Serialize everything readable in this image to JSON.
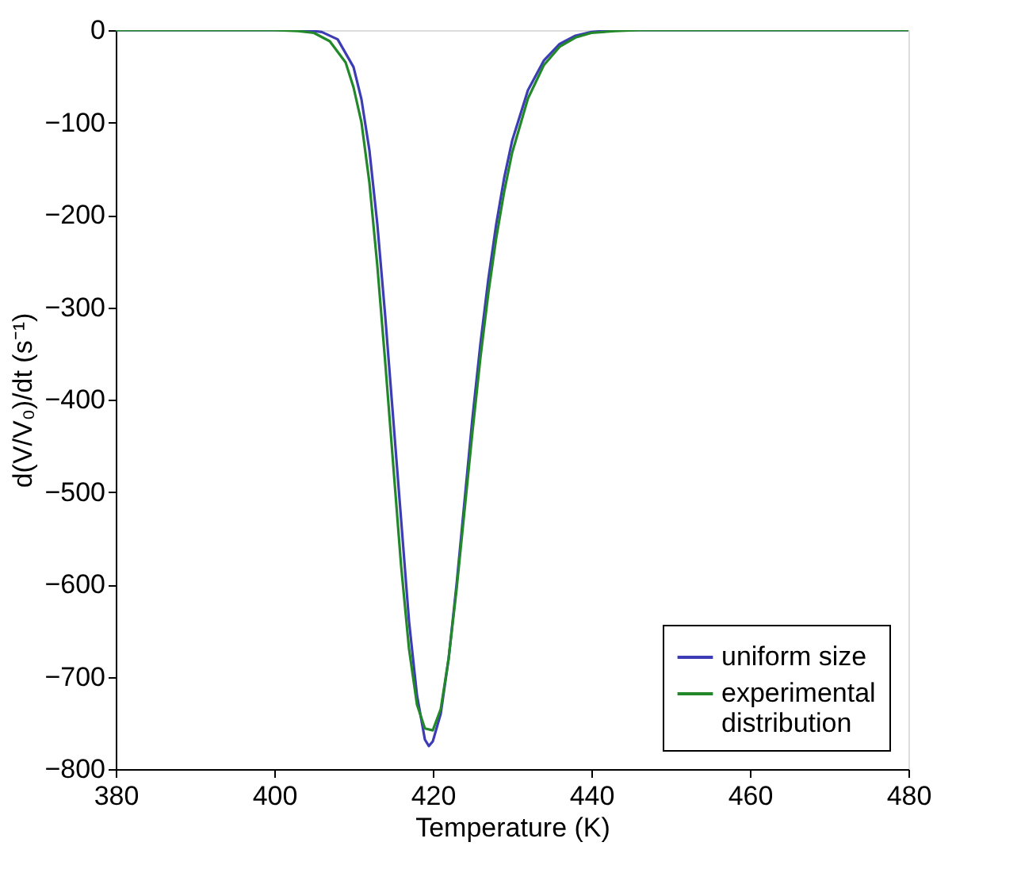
{
  "chart_data": {
    "type": "line",
    "xlabel": "Temperature (K)",
    "ylabel": "d(V/V₀)/dt (s⁻¹)",
    "xlim": [
      380,
      480
    ],
    "xticks": [
      380,
      400,
      420,
      440,
      460,
      480
    ],
    "ylim": [
      -800,
      0
    ],
    "yticks": [
      -800,
      -700,
      -600,
      -500,
      -400,
      -300,
      -200,
      -100,
      0
    ],
    "grid": false,
    "legend": "bottom right",
    "line_style": "solid",
    "marker": "none",
    "series": [
      {
        "name": "uniform size",
        "color": "#3c3cb4",
        "x": [
          380,
          400,
          404,
          406,
          408,
          410,
          411,
          412,
          413,
          414,
          415,
          416,
          417,
          418,
          419,
          419.5,
          420,
          421,
          422,
          423,
          424,
          425,
          426,
          427,
          428,
          429,
          430,
          432,
          434,
          436,
          438,
          440,
          443,
          480
        ],
        "values": [
          0,
          0,
          0,
          -2,
          -10,
          -40,
          -75,
          -130,
          -210,
          -310,
          -420,
          -530,
          -640,
          -720,
          -768,
          -775,
          -770,
          -740,
          -680,
          -600,
          -510,
          -420,
          -340,
          -270,
          -210,
          -160,
          -120,
          -65,
          -33,
          -15,
          -6,
          -2,
          0,
          0
        ]
      },
      {
        "name": "experimental distribution",
        "color": "#22882a",
        "x": [
          380,
          400,
          403,
          405,
          407,
          409,
          410,
          411,
          412,
          413,
          414,
          415,
          416,
          417,
          418,
          419,
          420,
          421,
          422,
          423,
          424,
          425,
          426,
          427,
          428,
          429,
          430,
          432,
          434,
          436,
          438,
          440,
          443,
          446,
          480
        ],
        "values": [
          0,
          0,
          -1,
          -3,
          -12,
          -35,
          -62,
          -100,
          -165,
          -255,
          -360,
          -470,
          -580,
          -670,
          -730,
          -756,
          -758,
          -735,
          -680,
          -605,
          -520,
          -435,
          -355,
          -285,
          -225,
          -175,
          -133,
          -74,
          -38,
          -18,
          -8,
          -3,
          -1,
          0,
          0
        ]
      }
    ]
  }
}
